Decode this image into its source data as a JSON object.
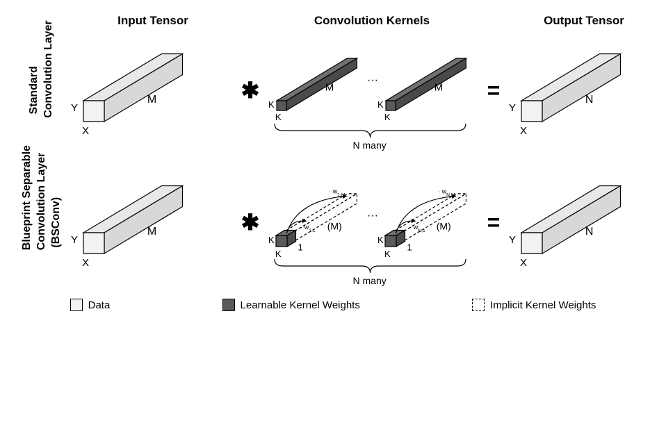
{
  "headers": {
    "input": "Input Tensor",
    "kernels": "Convolution Kernels",
    "output": "Output Tensor"
  },
  "rows": {
    "standard": {
      "label_line1": "Standard",
      "label_line2": "Convolution Layer"
    },
    "bsconv": {
      "label_line1": "Blueprint Separable",
      "label_line2": "Convolution Layer",
      "label_line3": "(BSConv)"
    }
  },
  "labels": {
    "X": "X",
    "Y": "Y",
    "M": "M",
    "N": "N",
    "K": "K",
    "one": "1",
    "M_paren": "(M)",
    "w11": "· w",
    "w11_sub": "1,1",
    "w1M": "· w",
    "w1M_sub": "1,M",
    "wN1": "· w",
    "wN1_sub": "N,1",
    "wNM": "· w",
    "wNM_sub": "N,M",
    "Nmany": "N many",
    "ellipsis": "···"
  },
  "legend": {
    "data": "Data",
    "kernel": "Learnable Kernel Weights",
    "implicit": "Implicit Kernel Weights"
  },
  "colors": {
    "data_fill": "#f2f2f2",
    "data_top": "#e8e8e8",
    "data_side": "#d8d8d8",
    "kernel_fill": "#5a5a5a",
    "kernel_top": "#707070",
    "kernel_side": "#4a4a4a",
    "stroke": "#000000",
    "bg": "#ffffff"
  },
  "geom": {
    "tensor": {
      "w": 30,
      "h": 30,
      "depth": 150,
      "iso_x": 0.75,
      "iso_y": 0.45
    },
    "kernel": {
      "w": 14,
      "h": 14,
      "depth": 130
    },
    "cube": {
      "w": 16,
      "h": 16,
      "depth": 16
    }
  }
}
